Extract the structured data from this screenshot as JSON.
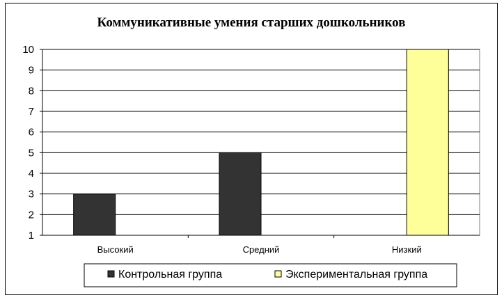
{
  "chart_data": {
    "type": "bar",
    "title": "Коммуникативные умения старших дошкольников",
    "xlabel": "",
    "ylabel": "",
    "categories": [
      "Высокий",
      "Средний",
      "Низкий"
    ],
    "series": [
      {
        "name": "Контрольная группа",
        "values": [
          3,
          5,
          null
        ],
        "color": "#333333"
      },
      {
        "name": "Экспериментальная группа",
        "values": [
          null,
          null,
          10
        ],
        "color": "#FFFF99"
      }
    ],
    "ylim": [
      1,
      10
    ],
    "yticks": [
      "1",
      "2",
      "3",
      "4",
      "5",
      "6",
      "7",
      "8",
      "9",
      "10"
    ],
    "grid": true,
    "legend_position": "bottom"
  }
}
